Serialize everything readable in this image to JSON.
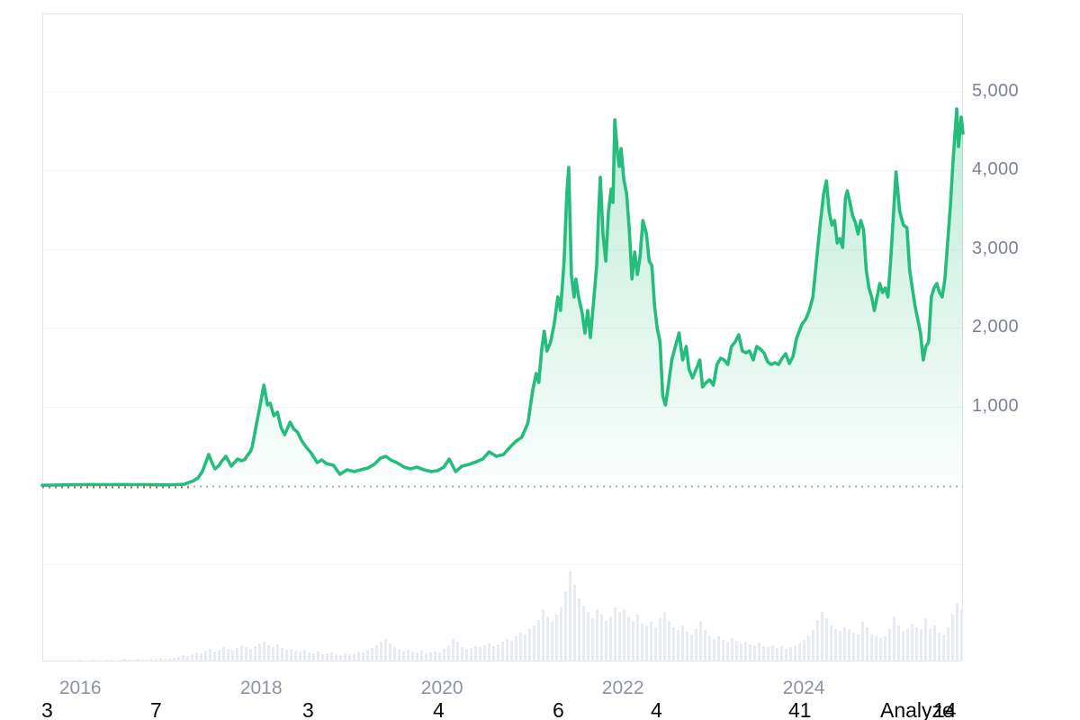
{
  "chart_data": {
    "type": "area",
    "title": "",
    "xlabel": "",
    "ylabel": "",
    "grid": "horizontal-only",
    "legend_position": "none",
    "x_axis": {
      "tick_labels": [
        "2016",
        "2018",
        "2020",
        "2022",
        "2024"
      ],
      "tick_years": [
        2016,
        2018,
        2020,
        2022,
        2024
      ],
      "range_years": [
        2015.58,
        2025.76
      ]
    },
    "y_axis": {
      "tick_labels": [
        "5,000",
        "4,000",
        "3,000",
        "2,000",
        "1,000"
      ],
      "tick_values": [
        5000,
        4000,
        3000,
        2000,
        1000
      ],
      "gridline_values": [
        5000,
        4000,
        3000,
        2000,
        1000,
        -1000
      ],
      "range": [
        -2234,
        5994
      ],
      "side": "right"
    },
    "baseline": {
      "value": 0,
      "style": "dotted",
      "gray_color": "#aaaeb8",
      "red_color": "#e05353",
      "red_until_year": 2017.23
    },
    "colors": {
      "line": "#25bd7c",
      "fill_top": "rgba(37,189,124,0.30)",
      "fill_bottom": "rgba(37,189,124,0.02)",
      "volume_bar": "#e8ebf1",
      "gridline": "#f0f2f5",
      "plot_border": "#e2e5eb"
    },
    "series": [
      {
        "name": "price",
        "points": [
          [
            2015.58,
            3
          ],
          [
            2015.7,
            6
          ],
          [
            2015.85,
            9
          ],
          [
            2016.0,
            11
          ],
          [
            2016.1,
            13
          ],
          [
            2016.2,
            11
          ],
          [
            2016.35,
            12
          ],
          [
            2016.5,
            13
          ],
          [
            2016.6,
            11
          ],
          [
            2016.75,
            12
          ],
          [
            2016.85,
            9
          ],
          [
            2016.95,
            8
          ],
          [
            2017.05,
            11
          ],
          [
            2017.15,
            16
          ],
          [
            2017.25,
            60
          ],
          [
            2017.3,
            95
          ],
          [
            2017.35,
            180
          ],
          [
            2017.42,
            394
          ],
          [
            2017.46,
            280
          ],
          [
            2017.49,
            211
          ],
          [
            2017.53,
            250
          ],
          [
            2017.56,
            303
          ],
          [
            2017.61,
            371
          ],
          [
            2017.64,
            310
          ],
          [
            2017.67,
            246
          ],
          [
            2017.71,
            300
          ],
          [
            2017.74,
            337
          ],
          [
            2017.78,
            314
          ],
          [
            2017.82,
            330
          ],
          [
            2017.84,
            371
          ],
          [
            2017.88,
            430
          ],
          [
            2017.9,
            486
          ],
          [
            2017.95,
            794
          ],
          [
            2017.98,
            966
          ],
          [
            2018.03,
            1274
          ],
          [
            2018.07,
            1023
          ],
          [
            2018.1,
            1046
          ],
          [
            2018.14,
            886
          ],
          [
            2018.18,
            931
          ],
          [
            2018.22,
            737
          ],
          [
            2018.26,
            646
          ],
          [
            2018.3,
            750
          ],
          [
            2018.32,
            806
          ],
          [
            2018.36,
            720
          ],
          [
            2018.4,
            680
          ],
          [
            2018.45,
            566
          ],
          [
            2018.5,
            486
          ],
          [
            2018.55,
            417
          ],
          [
            2018.62,
            291
          ],
          [
            2018.67,
            326
          ],
          [
            2018.72,
            280
          ],
          [
            2018.8,
            257
          ],
          [
            2018.87,
            143
          ],
          [
            2018.95,
            200
          ],
          [
            2019.03,
            177
          ],
          [
            2019.1,
            200
          ],
          [
            2019.18,
            223
          ],
          [
            2019.25,
            269
          ],
          [
            2019.32,
            349
          ],
          [
            2019.38,
            371
          ],
          [
            2019.43,
            326
          ],
          [
            2019.5,
            291
          ],
          [
            2019.58,
            234
          ],
          [
            2019.65,
            211
          ],
          [
            2019.72,
            234
          ],
          [
            2019.8,
            200
          ],
          [
            2019.88,
            177
          ],
          [
            2019.95,
            189
          ],
          [
            2020.02,
            234
          ],
          [
            2020.08,
            337
          ],
          [
            2020.15,
            177
          ],
          [
            2020.22,
            246
          ],
          [
            2020.3,
            269
          ],
          [
            2020.38,
            303
          ],
          [
            2020.45,
            337
          ],
          [
            2020.52,
            429
          ],
          [
            2020.6,
            371
          ],
          [
            2020.68,
            394
          ],
          [
            2020.75,
            486
          ],
          [
            2020.82,
            566
          ],
          [
            2020.88,
            611
          ],
          [
            2020.95,
            794
          ],
          [
            2021.0,
            1194
          ],
          [
            2021.04,
            1423
          ],
          [
            2021.07,
            1309
          ],
          [
            2021.1,
            1709
          ],
          [
            2021.13,
            1960
          ],
          [
            2021.16,
            1709
          ],
          [
            2021.2,
            1823
          ],
          [
            2021.24,
            2051
          ],
          [
            2021.28,
            2394
          ],
          [
            2021.31,
            2223
          ],
          [
            2021.35,
            2851
          ],
          [
            2021.38,
            3709
          ],
          [
            2021.4,
            4040
          ],
          [
            2021.43,
            2680
          ],
          [
            2021.46,
            2394
          ],
          [
            2021.48,
            2623
          ],
          [
            2021.51,
            2394
          ],
          [
            2021.55,
            2189
          ],
          [
            2021.58,
            1937
          ],
          [
            2021.61,
            2223
          ],
          [
            2021.64,
            1880
          ],
          [
            2021.68,
            2394
          ],
          [
            2021.71,
            2794
          ],
          [
            2021.73,
            3423
          ],
          [
            2021.75,
            3914
          ],
          [
            2021.78,
            3194
          ],
          [
            2021.81,
            2851
          ],
          [
            2021.84,
            3480
          ],
          [
            2021.87,
            3766
          ],
          [
            2021.89,
            3594
          ],
          [
            2021.91,
            4646
          ],
          [
            2021.94,
            4223
          ],
          [
            2021.96,
            4051
          ],
          [
            2021.98,
            4280
          ],
          [
            2022.01,
            3880
          ],
          [
            2022.04,
            3709
          ],
          [
            2022.07,
            3251
          ],
          [
            2022.1,
            2623
          ],
          [
            2022.13,
            2966
          ],
          [
            2022.16,
            2680
          ],
          [
            2022.19,
            2909
          ],
          [
            2022.22,
            3366
          ],
          [
            2022.26,
            3194
          ],
          [
            2022.29,
            2851
          ],
          [
            2022.32,
            2794
          ],
          [
            2022.35,
            2280
          ],
          [
            2022.38,
            1994
          ],
          [
            2022.41,
            1823
          ],
          [
            2022.44,
            1137
          ],
          [
            2022.47,
            1023
          ],
          [
            2022.5,
            1251
          ],
          [
            2022.54,
            1594
          ],
          [
            2022.58,
            1766
          ],
          [
            2022.62,
            1937
          ],
          [
            2022.66,
            1594
          ],
          [
            2022.7,
            1766
          ],
          [
            2022.73,
            1480
          ],
          [
            2022.77,
            1366
          ],
          [
            2022.81,
            1480
          ],
          [
            2022.85,
            1594
          ],
          [
            2022.88,
            1251
          ],
          [
            2022.92,
            1309
          ],
          [
            2022.96,
            1343
          ],
          [
            2023.0,
            1274
          ],
          [
            2023.04,
            1537
          ],
          [
            2023.08,
            1617
          ],
          [
            2023.12,
            1594
          ],
          [
            2023.16,
            1537
          ],
          [
            2023.2,
            1766
          ],
          [
            2023.24,
            1823
          ],
          [
            2023.28,
            1914
          ],
          [
            2023.32,
            1709
          ],
          [
            2023.36,
            1686
          ],
          [
            2023.4,
            1709
          ],
          [
            2023.44,
            1594
          ],
          [
            2023.48,
            1766
          ],
          [
            2023.52,
            1731
          ],
          [
            2023.56,
            1686
          ],
          [
            2023.6,
            1571
          ],
          [
            2023.64,
            1537
          ],
          [
            2023.68,
            1560
          ],
          [
            2023.72,
            1537
          ],
          [
            2023.76,
            1617
          ],
          [
            2023.8,
            1674
          ],
          [
            2023.84,
            1549
          ],
          [
            2023.88,
            1640
          ],
          [
            2023.92,
            1869
          ],
          [
            2023.98,
            2051
          ],
          [
            2024.02,
            2109
          ],
          [
            2024.06,
            2223
          ],
          [
            2024.1,
            2394
          ],
          [
            2024.14,
            2851
          ],
          [
            2024.18,
            3309
          ],
          [
            2024.22,
            3709
          ],
          [
            2024.25,
            3869
          ],
          [
            2024.28,
            3480
          ],
          [
            2024.31,
            3309
          ],
          [
            2024.34,
            3366
          ],
          [
            2024.37,
            3080
          ],
          [
            2024.4,
            3137
          ],
          [
            2024.43,
            3023
          ],
          [
            2024.46,
            3651
          ],
          [
            2024.48,
            3743
          ],
          [
            2024.51,
            3594
          ],
          [
            2024.54,
            3423
          ],
          [
            2024.57,
            3343
          ],
          [
            2024.6,
            3194
          ],
          [
            2024.63,
            3366
          ],
          [
            2024.66,
            3251
          ],
          [
            2024.69,
            2737
          ],
          [
            2024.72,
            2509
          ],
          [
            2024.75,
            2394
          ],
          [
            2024.78,
            2223
          ],
          [
            2024.81,
            2394
          ],
          [
            2024.84,
            2566
          ],
          [
            2024.87,
            2451
          ],
          [
            2024.9,
            2509
          ],
          [
            2024.93,
            2394
          ],
          [
            2024.96,
            2851
          ],
          [
            2024.99,
            3423
          ],
          [
            2025.02,
            3983
          ],
          [
            2025.06,
            3480
          ],
          [
            2025.1,
            3309
          ],
          [
            2025.14,
            3274
          ],
          [
            2025.17,
            2737
          ],
          [
            2025.2,
            2509
          ],
          [
            2025.23,
            2280
          ],
          [
            2025.26,
            2109
          ],
          [
            2025.29,
            1937
          ],
          [
            2025.32,
            1594
          ],
          [
            2025.35,
            1766
          ],
          [
            2025.38,
            1823
          ],
          [
            2025.41,
            2394
          ],
          [
            2025.44,
            2509
          ],
          [
            2025.47,
            2566
          ],
          [
            2025.5,
            2451
          ],
          [
            2025.53,
            2394
          ],
          [
            2025.56,
            2623
          ],
          [
            2025.59,
            3080
          ],
          [
            2025.62,
            3537
          ],
          [
            2025.65,
            4109
          ],
          [
            2025.67,
            4451
          ],
          [
            2025.69,
            4783
          ],
          [
            2025.71,
            4303
          ],
          [
            2025.74,
            4680
          ],
          [
            2025.76,
            4474
          ]
        ]
      }
    ],
    "volume": {
      "description": "relative weekly volume heights, left-to-right across full x range",
      "heights": [
        1,
        1,
        1,
        1,
        1,
        1,
        1,
        1,
        2,
        1,
        1,
        2,
        1,
        1,
        2,
        2,
        1,
        2,
        3,
        2,
        2,
        3,
        2,
        2,
        3,
        3,
        4,
        3,
        3,
        4,
        5,
        7,
        6,
        8,
        10,
        9,
        12,
        14,
        11,
        13,
        16,
        14,
        12,
        15,
        18,
        16,
        14,
        17,
        20,
        22,
        18,
        16,
        19,
        15,
        13,
        14,
        12,
        11,
        13,
        10,
        9,
        11,
        8,
        9,
        10,
        8,
        7,
        9,
        8,
        9,
        11,
        10,
        13,
        15,
        18,
        22,
        25,
        20,
        16,
        14,
        12,
        13,
        11,
        10,
        12,
        9,
        10,
        11,
        10,
        14,
        18,
        25,
        22,
        16,
        14,
        15,
        17,
        16,
        18,
        20,
        17,
        19,
        22,
        25,
        23,
        28,
        32,
        30,
        36,
        40,
        46,
        58,
        50,
        44,
        52,
        60,
        78,
        100,
        85,
        70,
        62,
        55,
        48,
        58,
        52,
        45,
        50,
        60,
        55,
        58,
        50,
        45,
        52,
        42,
        40,
        44,
        38,
        48,
        55,
        45,
        38,
        35,
        40,
        33,
        30,
        36,
        45,
        35,
        28,
        25,
        28,
        24,
        22,
        26,
        23,
        20,
        22,
        19,
        18,
        21,
        17,
        16,
        18,
        15,
        17,
        14,
        16,
        18,
        20,
        24,
        28,
        35,
        46,
        55,
        48,
        40,
        36,
        34,
        38,
        36,
        32,
        30,
        44,
        38,
        30,
        28,
        26,
        28,
        36,
        50,
        40,
        34,
        36,
        42,
        38,
        36,
        48,
        36,
        40,
        32,
        30,
        38,
        52,
        65,
        58
      ]
    }
  },
  "footer_fragments": [
    {
      "text": "3",
      "x": 46
    },
    {
      "text": "7",
      "x": 167
    },
    {
      "text": "3",
      "x": 336
    },
    {
      "text": "4",
      "x": 481
    },
    {
      "text": "6",
      "x": 614
    },
    {
      "text": "4",
      "x": 723
    },
    {
      "text": "41",
      "x": 876
    },
    {
      "text": "Analyze",
      "x": 978
    },
    {
      "text": "14",
      "x": 1037
    }
  ]
}
